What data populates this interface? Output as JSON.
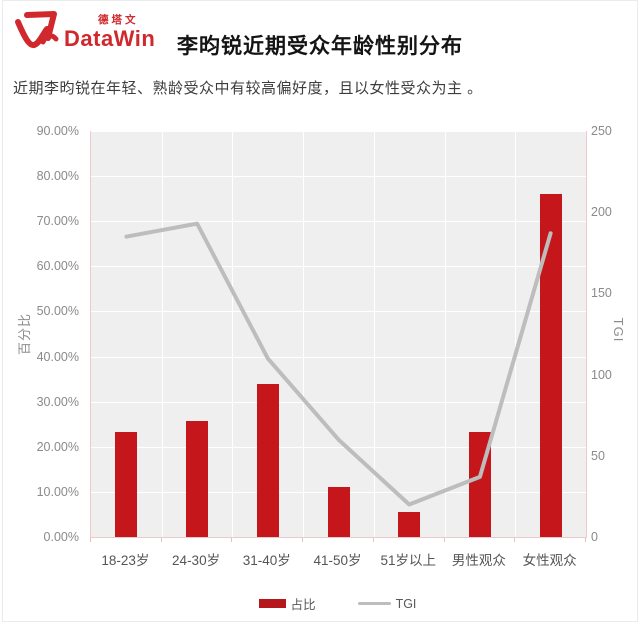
{
  "logo": {
    "cn": "德塔文",
    "en": "DataWin"
  },
  "title": "李昀锐近期受众年龄性别分布",
  "subtitle": "近期李昀锐在年轻、熟龄受众中有较高偏好度，且以女性受众为主 。",
  "colors": {
    "bar": "#c5171b",
    "line": "#bdbdbd",
    "plot_background": "#f0eff0",
    "gridline": "#ffffff",
    "axis_line": "#f2c9c9",
    "logo_red": "#d0282c"
  },
  "chart_data": {
    "type": "bar",
    "subtype": "bar+line combo, dual y-axis",
    "categories": [
      "18-23岁",
      "24-30岁",
      "31-40岁",
      "41-50岁",
      "51岁以上",
      "男性观众",
      "女性观众"
    ],
    "series": [
      {
        "name": "占比",
        "type": "bar",
        "axis": "left",
        "unit": "%",
        "values": [
          23.3,
          25.8,
          34.0,
          11.0,
          5.5,
          23.2,
          76.0
        ]
      },
      {
        "name": "TGI",
        "type": "line",
        "axis": "right",
        "values": [
          185,
          193,
          110,
          60,
          20,
          37,
          187
        ]
      }
    ],
    "ylabel_left": "百分比",
    "ylabel_right": "TGI",
    "y_left": {
      "min": 0,
      "max": 90,
      "step": 10,
      "ticks": [
        "0.00%",
        "10.00%",
        "20.00%",
        "30.00%",
        "40.00%",
        "50.00%",
        "60.00%",
        "70.00%",
        "80.00%",
        "90.00%"
      ]
    },
    "y_right": {
      "min": 0,
      "max": 250,
      "step": 50,
      "ticks": [
        "0",
        "50",
        "100",
        "150",
        "200",
        "250"
      ]
    },
    "grid": true,
    "legend_position": "bottom"
  }
}
